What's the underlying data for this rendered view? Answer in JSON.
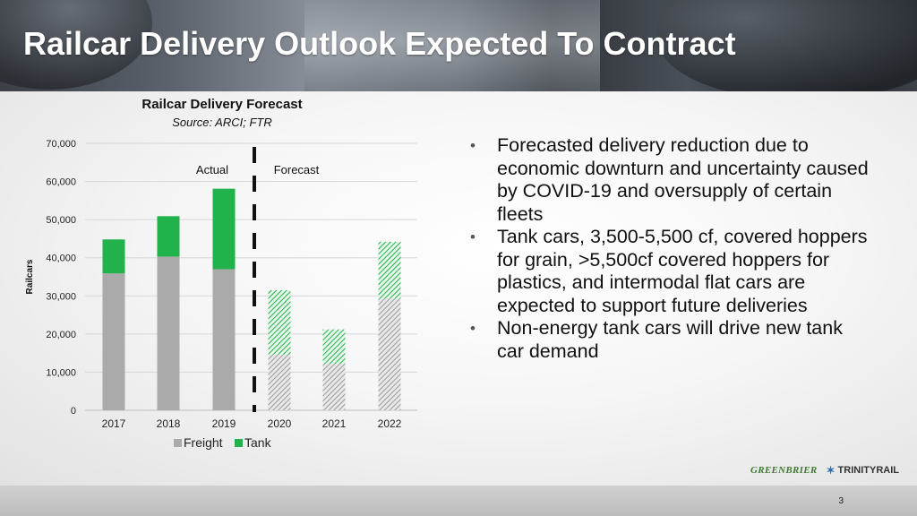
{
  "slide": {
    "title": "Railcar Delivery Outlook Expected To Contract",
    "page_number": "3",
    "logos": {
      "left": "GREENBRIER",
      "right": "TRINITYRAIL"
    }
  },
  "chart_data": {
    "type": "bar",
    "stacked": true,
    "title": "Railcar Delivery Forecast",
    "subtitle": "Source: ARCI; FTR",
    "ylabel": "Railcars",
    "xlabel": "",
    "ylim": [
      0,
      70000
    ],
    "yticks": [
      "0",
      "10,000",
      "20,000",
      "30,000",
      "40,000",
      "50,000",
      "60,000",
      "70,000"
    ],
    "ytick_values": [
      0,
      10000,
      20000,
      30000,
      40000,
      50000,
      60000,
      70000
    ],
    "categories": [
      "2017",
      "2018",
      "2019",
      "2020",
      "2021",
      "2022"
    ],
    "series": [
      {
        "name": "Freight",
        "color": "#aaaaaa",
        "values": [
          35900,
          40300,
          37000,
          14600,
          12200,
          29300
        ]
      },
      {
        "name": "Tank",
        "color": "#22b24c",
        "values": [
          8900,
          10600,
          21100,
          16900,
          9000,
          14900
        ]
      }
    ],
    "forecast_from_index": 3,
    "annotations": {
      "actual": "Actual",
      "forecast": "Forecast"
    },
    "grid": true,
    "legend": "bottom"
  },
  "bullets": [
    "Forecasted delivery reduction due to economic downturn and uncertainty caused by COVID-19 and oversupply of certain fleets",
    "Tank cars, 3,500-5,500 cf, covered hoppers for grain, >5,500cf covered hoppers for plastics, and intermodal flat cars are expected to support future deliveries",
    "Non-energy tank cars will drive new tank car demand"
  ],
  "bullet_marker": "•"
}
